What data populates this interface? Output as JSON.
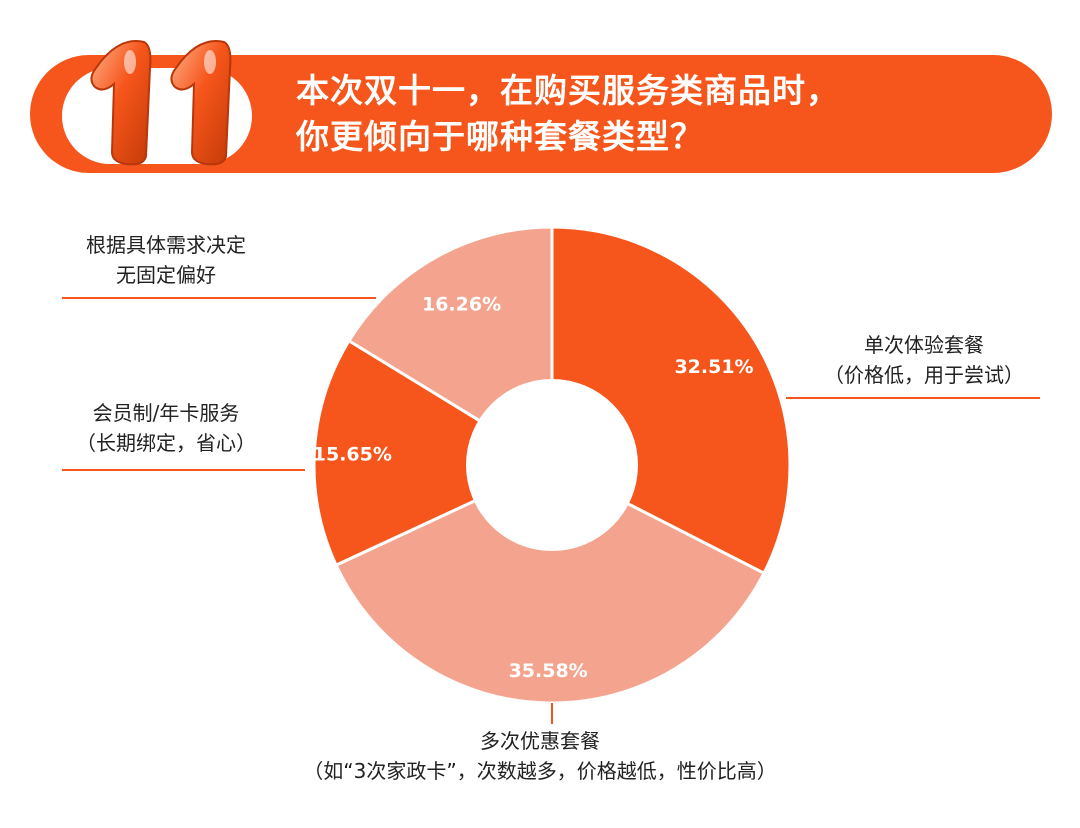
{
  "header": {
    "title_line1": "本次双十一，在购买服务类商品时，",
    "title_line2": "你更倾向于哪种套餐类型？",
    "badge_text": "11"
  },
  "colors": {
    "banner": "#f6561b",
    "slice_dark": "#f6561b",
    "slice_light": "#f4a48e",
    "leader_line": "#f6561b"
  },
  "chart_data": {
    "type": "pie",
    "start_angle_deg": 0,
    "slices": [
      {
        "label_line1": "单次体验套餐",
        "label_line2": "（价格低，用于尝试）",
        "value": 32.51,
        "value_label": "32.51%",
        "color": "#f6561b"
      },
      {
        "label_line1": "多次优惠套餐",
        "label_line2": "（如“3次家政卡”，次数越多，价格越低，性价比高）",
        "value": 35.58,
        "value_label": "35.58%",
        "color": "#f4a48e"
      },
      {
        "label_line1": "会员制/年卡服务",
        "label_line2": "（长期绑定，省心）",
        "value": 15.65,
        "value_label": "15.65%",
        "color": "#f6561b"
      },
      {
        "label_line1": "根据具体需求决定",
        "label_line2": "无固定偏好",
        "value": 16.26,
        "value_label": "16.26%",
        "color": "#f4a48e"
      }
    ]
  }
}
